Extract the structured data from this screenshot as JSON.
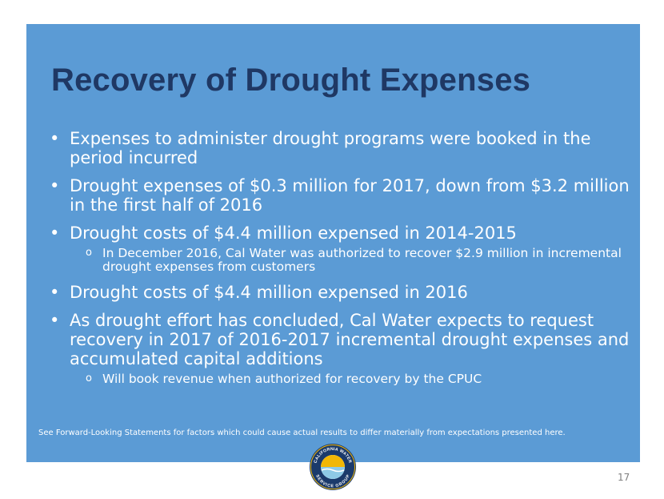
{
  "slide": {
    "title": "Recovery of Drought Expenses",
    "bullets": [
      "Expenses to administer drought programs were booked in the period incurred",
      "Drought expenses of $0.3 million for 2017, down from $3.2 million in the first half of 2016",
      "Drought costs of $4.4 million expensed in 2014-2015",
      "Drought costs of $4.4 million expensed in 2016",
      "As drought effort has concluded, Cal Water expects to request recovery in 2017 of 2016-2017 incremental drought expenses and accumulated capital additions"
    ],
    "sub_bullets": [
      "In December 2016, Cal Water was authorized to recover $2.9 million in incremental drought expenses from customers",
      "Will book revenue when authorized for recovery by the CPUC"
    ],
    "footnote": "See Forward-Looking Statements for factors which could cause actual results to differ materially from expectations presented here.",
    "page_number": "17",
    "logo": {
      "text_top": "CALIFORNIA WATER",
      "text_bottom": "SERVICE GROUP",
      "colors": {
        "navy": "#1b3a6b",
        "gold": "#f2b705",
        "sky": "#8ecae6"
      }
    }
  }
}
